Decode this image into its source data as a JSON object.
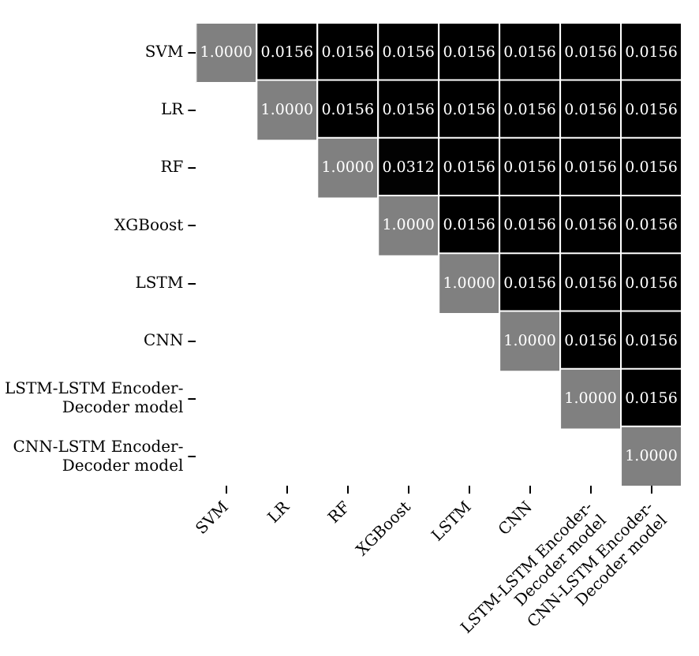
{
  "chart_data": {
    "type": "heatmap",
    "categories": [
      "SVM",
      "LR",
      "RF",
      "XGBoost",
      "LSTM",
      "CNN",
      "LSTM-LSTM Encoder-\nDecoder model",
      "CNN-LSTM Encoder-\nDecoder model"
    ],
    "y_categories": [
      "SVM",
      "LR",
      "RF",
      "XGBoost",
      "LSTM",
      "CNN",
      "LSTM-LSTM Encoder-\nDecoder model",
      "CNN-LSTM Encoder-\nDecoder model"
    ],
    "cells": [
      [
        1.0,
        0.0156,
        0.0156,
        0.0156,
        0.0156,
        0.0156,
        0.0156,
        0.0156
      ],
      [
        null,
        1.0,
        0.0156,
        0.0156,
        0.0156,
        0.0156,
        0.0156,
        0.0156
      ],
      [
        null,
        null,
        1.0,
        0.0312,
        0.0156,
        0.0156,
        0.0156,
        0.0156
      ],
      [
        null,
        null,
        null,
        1.0,
        0.0156,
        0.0156,
        0.0156,
        0.0156
      ],
      [
        null,
        null,
        null,
        null,
        1.0,
        0.0156,
        0.0156,
        0.0156
      ],
      [
        null,
        null,
        null,
        null,
        null,
        1.0,
        0.0156,
        0.0156
      ],
      [
        null,
        null,
        null,
        null,
        null,
        null,
        1.0,
        0.0156
      ],
      [
        null,
        null,
        null,
        null,
        null,
        null,
        null,
        1.0
      ]
    ],
    "cell_labels": [
      [
        "1.0000",
        "0.0156",
        "0.0156",
        "0.0156",
        "0.0156",
        "0.0156",
        "0.0156",
        "0.0156"
      ],
      [
        null,
        "1.0000",
        "0.0156",
        "0.0156",
        "0.0156",
        "0.0156",
        "0.0156",
        "0.0156"
      ],
      [
        null,
        null,
        "1.0000",
        "0.0312",
        "0.0156",
        "0.0156",
        "0.0156",
        "0.0156"
      ],
      [
        null,
        null,
        null,
        "1.0000",
        "0.0156",
        "0.0156",
        "0.0156",
        "0.0156"
      ],
      [
        null,
        null,
        null,
        null,
        "1.0000",
        "0.0156",
        "0.0156",
        "0.0156"
      ],
      [
        null,
        null,
        null,
        null,
        null,
        "1.0000",
        "0.0156",
        "0.0156"
      ],
      [
        null,
        null,
        null,
        null,
        null,
        null,
        "1.0000",
        "0.0156"
      ],
      [
        null,
        null,
        null,
        null,
        null,
        null,
        null,
        "1.0000"
      ]
    ]
  }
}
